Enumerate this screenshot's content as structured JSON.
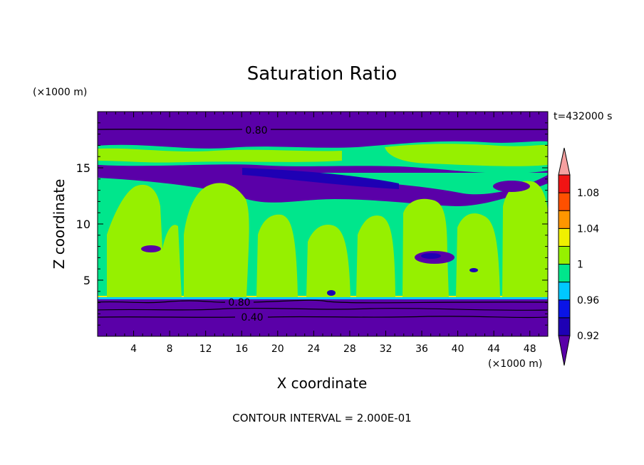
{
  "chart_data": {
    "type": "heatmap",
    "title": "Saturation Ratio",
    "xlabel": "X coordinate",
    "ylabel": "Z coordinate",
    "x_unit": "(×1000 m)",
    "y_unit": "(×1000 m)",
    "xlim": [
      0,
      50
    ],
    "ylim": [
      0,
      20
    ],
    "x_ticks": [
      "4",
      "8",
      "12",
      "16",
      "20",
      "24",
      "28",
      "32",
      "36",
      "40",
      "44",
      "48"
    ],
    "y_ticks": [
      "5",
      "10",
      "15"
    ],
    "time_label": "t=432000 s",
    "footer": "CONTOUR INTERVAL = 2.000E-01",
    "contour_labels": [
      "0.80",
      "0.80",
      "0.40"
    ],
    "colorbar": {
      "labels": [
        "1.08",
        "1.04",
        "1",
        "0.96",
        "0.92"
      ],
      "colors": [
        "#5a00a8",
        "#1e00b4",
        "#0a14e6",
        "#00c8ff",
        "#00e68c",
        "#96f000",
        "#f0f000",
        "#ff9600",
        "#ff5000",
        "#f01414",
        "#f5a0a0"
      ]
    },
    "regions": [
      {
        "z_range": [
          0,
          3.3
        ],
        "value": "< 0.90",
        "color": "#5a00a8"
      },
      {
        "z_range": [
          3.3,
          14
        ],
        "value": "0.98 - 1.00 / 1.00 - 1.02",
        "color": "#96f000"
      },
      {
        "z_range": [
          14,
          17.5
        ],
        "value": "0.90 - 1.00",
        "color": "#00e68c"
      },
      {
        "z_range": [
          17.5,
          20
        ],
        "value": "< 0.90",
        "color": "#5a00a8"
      }
    ]
  }
}
